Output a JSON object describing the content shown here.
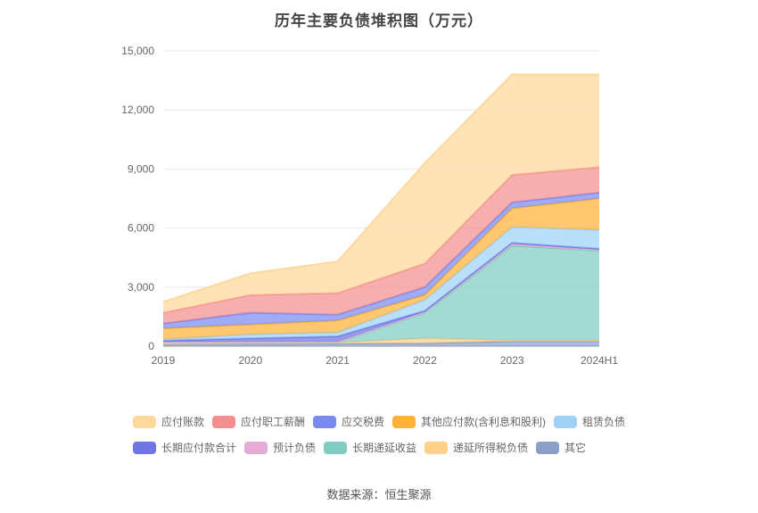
{
  "title": "历年主要负债堆积图（万元）",
  "footer": "数据来源：恒生聚源",
  "chart_data": {
    "type": "area",
    "stacked": true,
    "title": "历年主要负债堆积图（万元）",
    "categories": [
      "2019",
      "2020",
      "2021",
      "2022",
      "2023",
      "2024H1"
    ],
    "ylim": [
      0,
      15000
    ],
    "ytick_interval": 3000,
    "grid": true,
    "legend_position": "bottom",
    "legend_rows": [
      [
        0,
        1,
        2,
        3,
        4
      ],
      [
        5,
        6,
        7,
        8,
        9
      ]
    ],
    "series": [
      {
        "name": "应付账款",
        "color": "#FFD89B",
        "values": [
          550,
          1100,
          1600,
          5100,
          5100,
          4700
        ]
      },
      {
        "name": "应付职工薪酬",
        "color": "#F48F8F",
        "values": [
          550,
          900,
          1100,
          1200,
          1400,
          1300
        ]
      },
      {
        "name": "应交税费",
        "color": "#7A8BF0",
        "values": [
          250,
          600,
          300,
          400,
          300,
          300
        ]
      },
      {
        "name": "其他应付款(含利息和股利)",
        "color": "#FFB237",
        "values": [
          550,
          500,
          600,
          250,
          950,
          1600
        ]
      },
      {
        "name": "租赁负债",
        "color": "#9FD2F6",
        "values": [
          70,
          200,
          200,
          550,
          800,
          950
        ]
      },
      {
        "name": "长期应付款合计",
        "color": "#6F75E3",
        "values": [
          60,
          170,
          260,
          50,
          50,
          50
        ]
      },
      {
        "name": "预计负债",
        "color": "#E5AAD6",
        "values": [
          20,
          30,
          30,
          50,
          100,
          50
        ]
      },
      {
        "name": "长期递延收益",
        "color": "#7FCCC3",
        "values": [
          50,
          30,
          30,
          1300,
          4800,
          4550
        ]
      },
      {
        "name": "递延所得税负债",
        "color": "#FFD089",
        "values": [
          50,
          50,
          50,
          250,
          50,
          50
        ]
      },
      {
        "name": "其它",
        "color": "#8BA0C9",
        "values": [
          100,
          120,
          130,
          150,
          250,
          250
        ]
      }
    ],
    "colors": {
      "gridline": "#E9E9EF",
      "axis_line": "#999999",
      "tick_text": "#666666"
    }
  }
}
